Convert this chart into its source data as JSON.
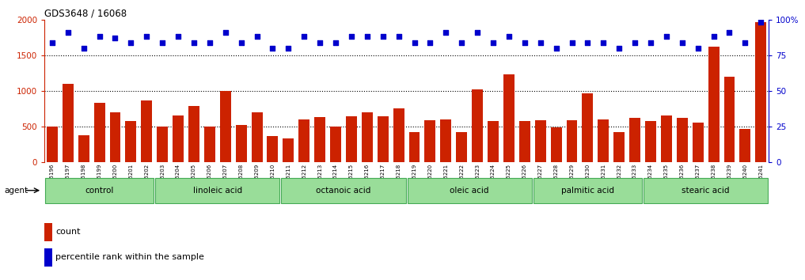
{
  "title": "GDS3648 / 16068",
  "samples": [
    "GSM525196",
    "GSM525197",
    "GSM525198",
    "GSM525199",
    "GSM525200",
    "GSM525201",
    "GSM525202",
    "GSM525203",
    "GSM525204",
    "GSM525205",
    "GSM525206",
    "GSM525207",
    "GSM525208",
    "GSM525209",
    "GSM525210",
    "GSM525211",
    "GSM525212",
    "GSM525213",
    "GSM525214",
    "GSM525215",
    "GSM525216",
    "GSM525217",
    "GSM525218",
    "GSM525219",
    "GSM525220",
    "GSM525221",
    "GSM525222",
    "GSM525223",
    "GSM525224",
    "GSM525225",
    "GSM525226",
    "GSM525227",
    "GSM525228",
    "GSM525229",
    "GSM525230",
    "GSM525231",
    "GSM525232",
    "GSM525233",
    "GSM525234",
    "GSM525235",
    "GSM525236",
    "GSM525237",
    "GSM525238",
    "GSM525239",
    "GSM525240",
    "GSM525241"
  ],
  "count_values": [
    500,
    1100,
    380,
    830,
    700,
    580,
    870,
    500,
    660,
    790,
    500,
    1000,
    520,
    700,
    370,
    340,
    600,
    640,
    500,
    650,
    700,
    650,
    760,
    430,
    590,
    600,
    430,
    1020,
    580,
    1230,
    580,
    590,
    490,
    590,
    970,
    600,
    420,
    620,
    580,
    660,
    620,
    560,
    1620,
    1200,
    470,
    1960
  ],
  "percentile_values": [
    84,
    91,
    80,
    88,
    87,
    84,
    88,
    84,
    88,
    84,
    84,
    91,
    84,
    88,
    80,
    80,
    88,
    84,
    84,
    88,
    88,
    88,
    88,
    84,
    84,
    91,
    84,
    91,
    84,
    88,
    84,
    84,
    80,
    84,
    84,
    84,
    80,
    84,
    84,
    88,
    84,
    80,
    88,
    91,
    84,
    98
  ],
  "groups": [
    {
      "label": "control",
      "start": 0,
      "end": 7
    },
    {
      "label": "linoleic acid",
      "start": 7,
      "end": 15
    },
    {
      "label": "octanoic acid",
      "start": 15,
      "end": 23
    },
    {
      "label": "oleic acid",
      "start": 23,
      "end": 31
    },
    {
      "label": "palmitic acid",
      "start": 31,
      "end": 38
    },
    {
      "label": "stearic acid",
      "start": 38,
      "end": 46
    }
  ],
  "bar_color": "#cc2200",
  "dot_color": "#0000cc",
  "group_bg_color": "#99dd99",
  "group_border_color": "#44aa55",
  "left_axis_color": "#cc2200",
  "right_axis_color": "#0000cc",
  "ylim_left": [
    0,
    2000
  ],
  "ylim_right": [
    0,
    100
  ],
  "yticks_left": [
    0,
    500,
    1000,
    1500,
    2000
  ],
  "yticks_right": [
    0,
    25,
    50,
    75,
    100
  ],
  "legend_count_label": "count",
  "legend_pct_label": "percentile rank within the sample",
  "agent_label": "agent"
}
